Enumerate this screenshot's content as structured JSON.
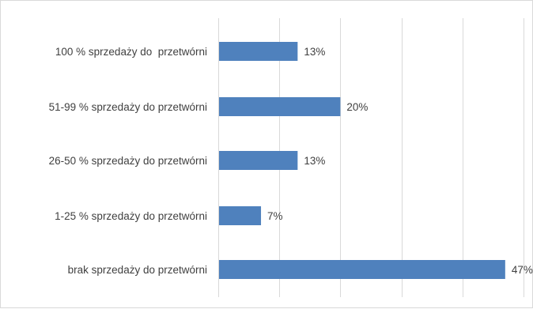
{
  "chart_data": {
    "type": "bar",
    "orientation": "horizontal",
    "title": "",
    "xlabel": "",
    "ylabel": "",
    "categories": [
      "100 % sprzedaży do  przetwórni",
      "51-99 % sprzedaży do przetwórni",
      "26-50 % sprzedaży do przetwórni",
      "1-25 % sprzedaży do przetwórni",
      "brak sprzedaży do przetwórni"
    ],
    "values": [
      13,
      20,
      13,
      7,
      47
    ],
    "data_labels": [
      "13%",
      "20%",
      "13%",
      "7%",
      "47%"
    ],
    "value_unit": "%",
    "xlim": [
      0,
      50
    ],
    "x_tick_step": 10,
    "x_tick_labels_shown": false,
    "grid": "vertical",
    "legend": "none",
    "bar_color": "#4F81BD",
    "grid_color": "#d9d9d9",
    "text_color": "#404040"
  }
}
